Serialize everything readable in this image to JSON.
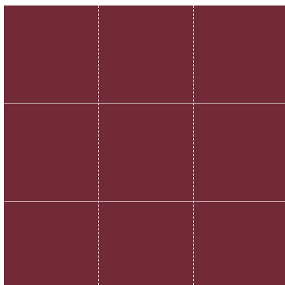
{
  "view": {
    "type": "grid-view",
    "rows": 3,
    "columns": 3,
    "background_color": "#722a38",
    "horizontal_line_color": "#c9aeb4",
    "horizontal_line_style": "solid",
    "vertical_line_color": "#e3d0d4",
    "vertical_line_style": "dashed"
  }
}
